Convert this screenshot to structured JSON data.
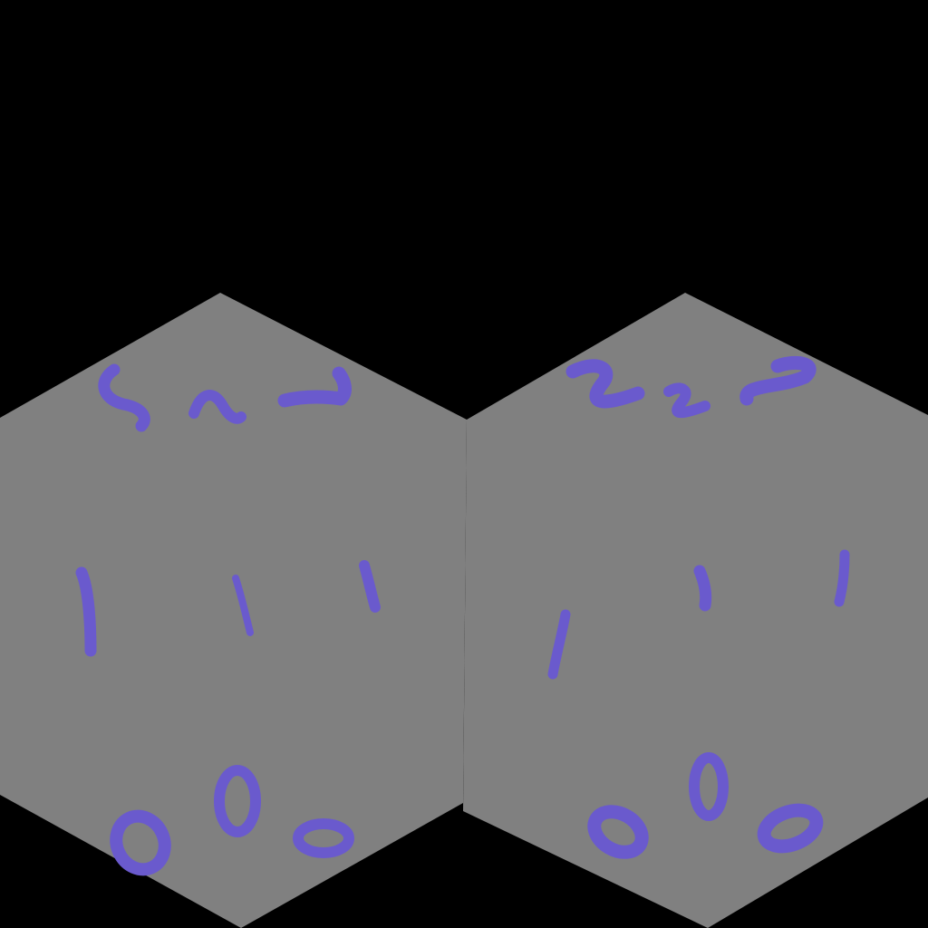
{
  "background_color": "#000000",
  "tile_color": "#808080",
  "ink_color": "#6a5acd",
  "tiles": [
    {
      "name": "hex-tile-left",
      "rows": [
        {
          "name": "row-twos",
          "glyphs": [
            "5",
            "2",
            "7"
          ]
        },
        {
          "name": "row-ones",
          "glyphs": [
            "1",
            "1",
            "1"
          ]
        },
        {
          "name": "row-zeros",
          "glyphs": [
            "0",
            "0",
            "0"
          ]
        }
      ]
    },
    {
      "name": "hex-tile-right",
      "rows": [
        {
          "name": "row-twos",
          "glyphs": [
            "2",
            "2",
            "2"
          ]
        },
        {
          "name": "row-ones",
          "glyphs": [
            "1",
            "1",
            "1"
          ]
        },
        {
          "name": "row-zeros",
          "glyphs": [
            "0",
            "0",
            "0"
          ]
        }
      ]
    }
  ]
}
